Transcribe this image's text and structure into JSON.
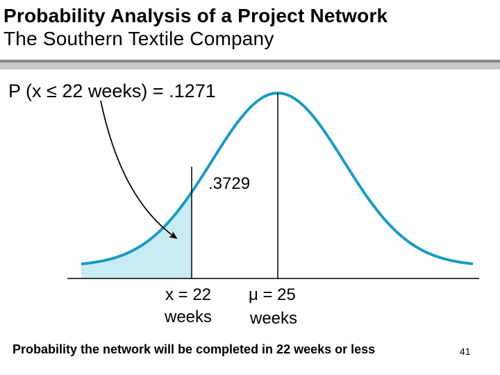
{
  "slide": {
    "title_line1": "Probability Analysis of a Project Network",
    "title_line2": "The Southern Textile Company",
    "caption": "Probability the network will be completed in 22 weeks or less",
    "footer_date": "",
    "footer_overlay": "",
    "slide_number": "41"
  },
  "diagram": {
    "probability_label": "P (x ≤ 22 weeks) = .1271",
    "area_label": ".3729",
    "x_marker_value": "x = 22",
    "x_marker_unit": "weeks",
    "mean_marker_value": "μ = 25",
    "mean_marker_unit": "weeks",
    "curve_color": "#1a9bc0",
    "shade_color": "#c9ebf4"
  }
}
